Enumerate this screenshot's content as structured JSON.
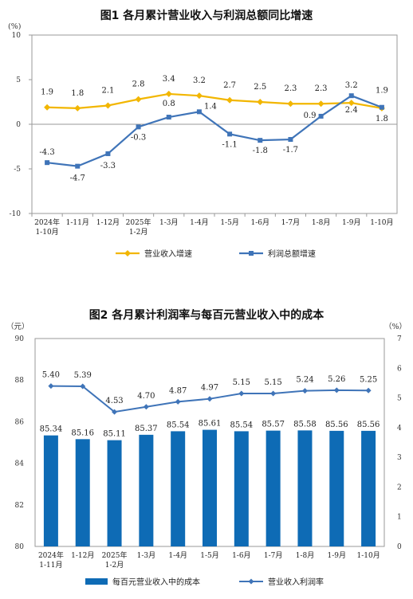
{
  "chart_data": [
    {
      "type": "line",
      "title": "图1  各月累计营业收入与利润总额同比增速",
      "unit": "(%)",
      "categories": [
        [
          "2024年",
          "1-10月"
        ],
        [
          "1-11月"
        ],
        [
          "1-12月"
        ],
        [
          "2025年",
          "1-2月"
        ],
        [
          "1-3月"
        ],
        [
          "1-4月"
        ],
        [
          "1-5月"
        ],
        [
          "1-6月"
        ],
        [
          "1-7月"
        ],
        [
          "1-8月"
        ],
        [
          "1-9月"
        ],
        [
          "1-10月"
        ]
      ],
      "ylim": [
        -10,
        10
      ],
      "yticks": [
        -10,
        -5,
        0,
        5,
        10
      ],
      "series": [
        {
          "name": "营业收入增速",
          "color": "#f2b600",
          "marker": "diamond",
          "values": [
            1.9,
            1.8,
            2.1,
            2.8,
            3.4,
            3.2,
            2.7,
            2.5,
            2.3,
            2.3,
            2.4,
            1.8
          ],
          "labels": [
            "1.9",
            "1.8",
            "2.1",
            "2.8",
            "3.4",
            "3.2",
            "2.7",
            "2.5",
            "2.3",
            "2.3",
            "2.4",
            "1.8"
          ]
        },
        {
          "name": "利润总额增速",
          "color": "#3f74b8",
          "marker": "square",
          "values": [
            -4.3,
            -4.7,
            -3.3,
            -0.3,
            0.8,
            1.4,
            -1.1,
            -1.8,
            -1.7,
            0.9,
            3.2,
            1.9
          ],
          "labels": [
            "-4.3",
            "-4.7",
            "-3.3",
            "-0.3",
            "0.8",
            "1.4",
            "-1.1",
            "-1.8",
            "-1.7",
            "0.9",
            "3.2",
            "1.9"
          ]
        }
      ],
      "legend": "bottom"
    },
    {
      "type": "bar",
      "title": "图2  各月累计利润率与每百元营业收入中的成本",
      "left_unit": "（元）",
      "right_unit": "（%）",
      "categories": [
        [
          "2024年",
          "1-11月"
        ],
        [
          "1-12月"
        ],
        [
          "2025年",
          "1-2月"
        ],
        [
          "1-3月"
        ],
        [
          "1-4月"
        ],
        [
          "1-5月"
        ],
        [
          "1-6月"
        ],
        [
          "1-7月"
        ],
        [
          "1-8月"
        ],
        [
          "1-9月"
        ],
        [
          "1-10月"
        ]
      ],
      "ylim_left": [
        80,
        90
      ],
      "yticks_left": [
        80,
        82,
        84,
        86,
        88,
        90
      ],
      "ylim_right": [
        0,
        7
      ],
      "yticks_right": [
        0,
        1,
        2,
        3,
        4,
        5,
        6,
        7
      ],
      "bars": {
        "name": "每百元营业收入中的成本",
        "color": "#0e6bb5",
        "values": [
          85.34,
          85.16,
          85.11,
          85.37,
          85.54,
          85.61,
          85.54,
          85.57,
          85.58,
          85.56,
          85.56
        ],
        "labels": [
          "85.34",
          "85.16",
          "85.11",
          "85.37",
          "85.54",
          "85.61",
          "85.54",
          "85.57",
          "85.58",
          "85.56",
          "85.56"
        ]
      },
      "line": {
        "name": "营业收入利润率",
        "color": "#3f74b8",
        "marker": "diamond",
        "values": [
          5.4,
          5.39,
          4.53,
          4.7,
          4.87,
          4.97,
          5.15,
          5.15,
          5.24,
          5.26,
          5.25
        ],
        "labels": [
          "5.40",
          "5.39",
          "4.53",
          "4.70",
          "4.87",
          "4.97",
          "5.15",
          "5.15",
          "5.24",
          "5.26",
          "5.25"
        ]
      },
      "legend": "bottom"
    }
  ]
}
